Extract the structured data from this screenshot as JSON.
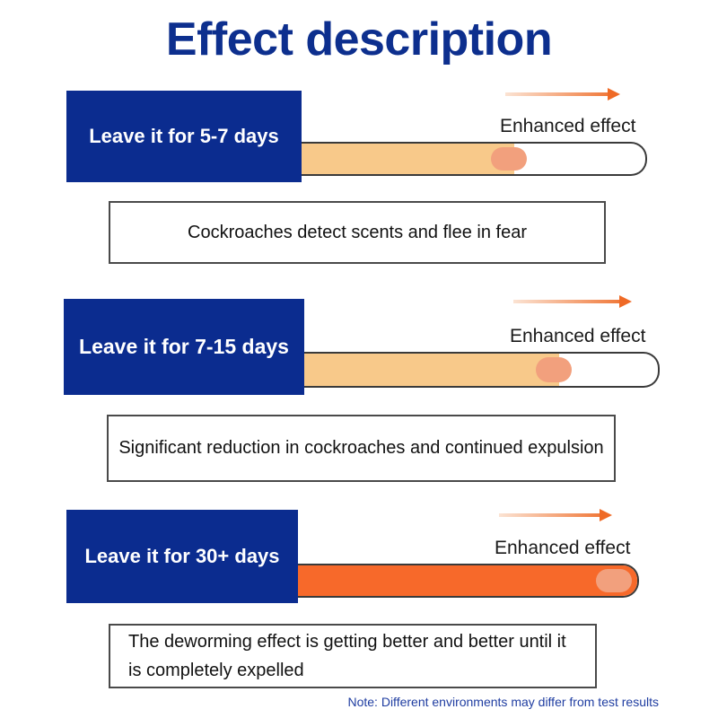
{
  "title": "Effect description",
  "stages": [
    {
      "label": "Leave it for 5-7 days",
      "enhanced": "Enhanced effect",
      "progress": 0.62,
      "fill_color": "#f8c98a",
      "description": "Cockroaches detect scents and flee in fear"
    },
    {
      "label": "Leave it for 7-15 days",
      "enhanced": "Enhanced effect",
      "progress": 0.72,
      "fill_color": "#f8c98a",
      "description": "Significant reduction in cockroaches and continued expulsion"
    },
    {
      "label": "Leave it for 30+ days",
      "enhanced": "Enhanced effect",
      "progress": 1.0,
      "fill_color": "#f7692a",
      "description": "The deworming effect is getting better and better until it is completely expelled"
    }
  ],
  "note": "Note: Different environments may differ from test results",
  "colors": {
    "brand_blue": "#0b2c8f",
    "knob": "#f2a07d",
    "arrow": "#ef6a26"
  }
}
